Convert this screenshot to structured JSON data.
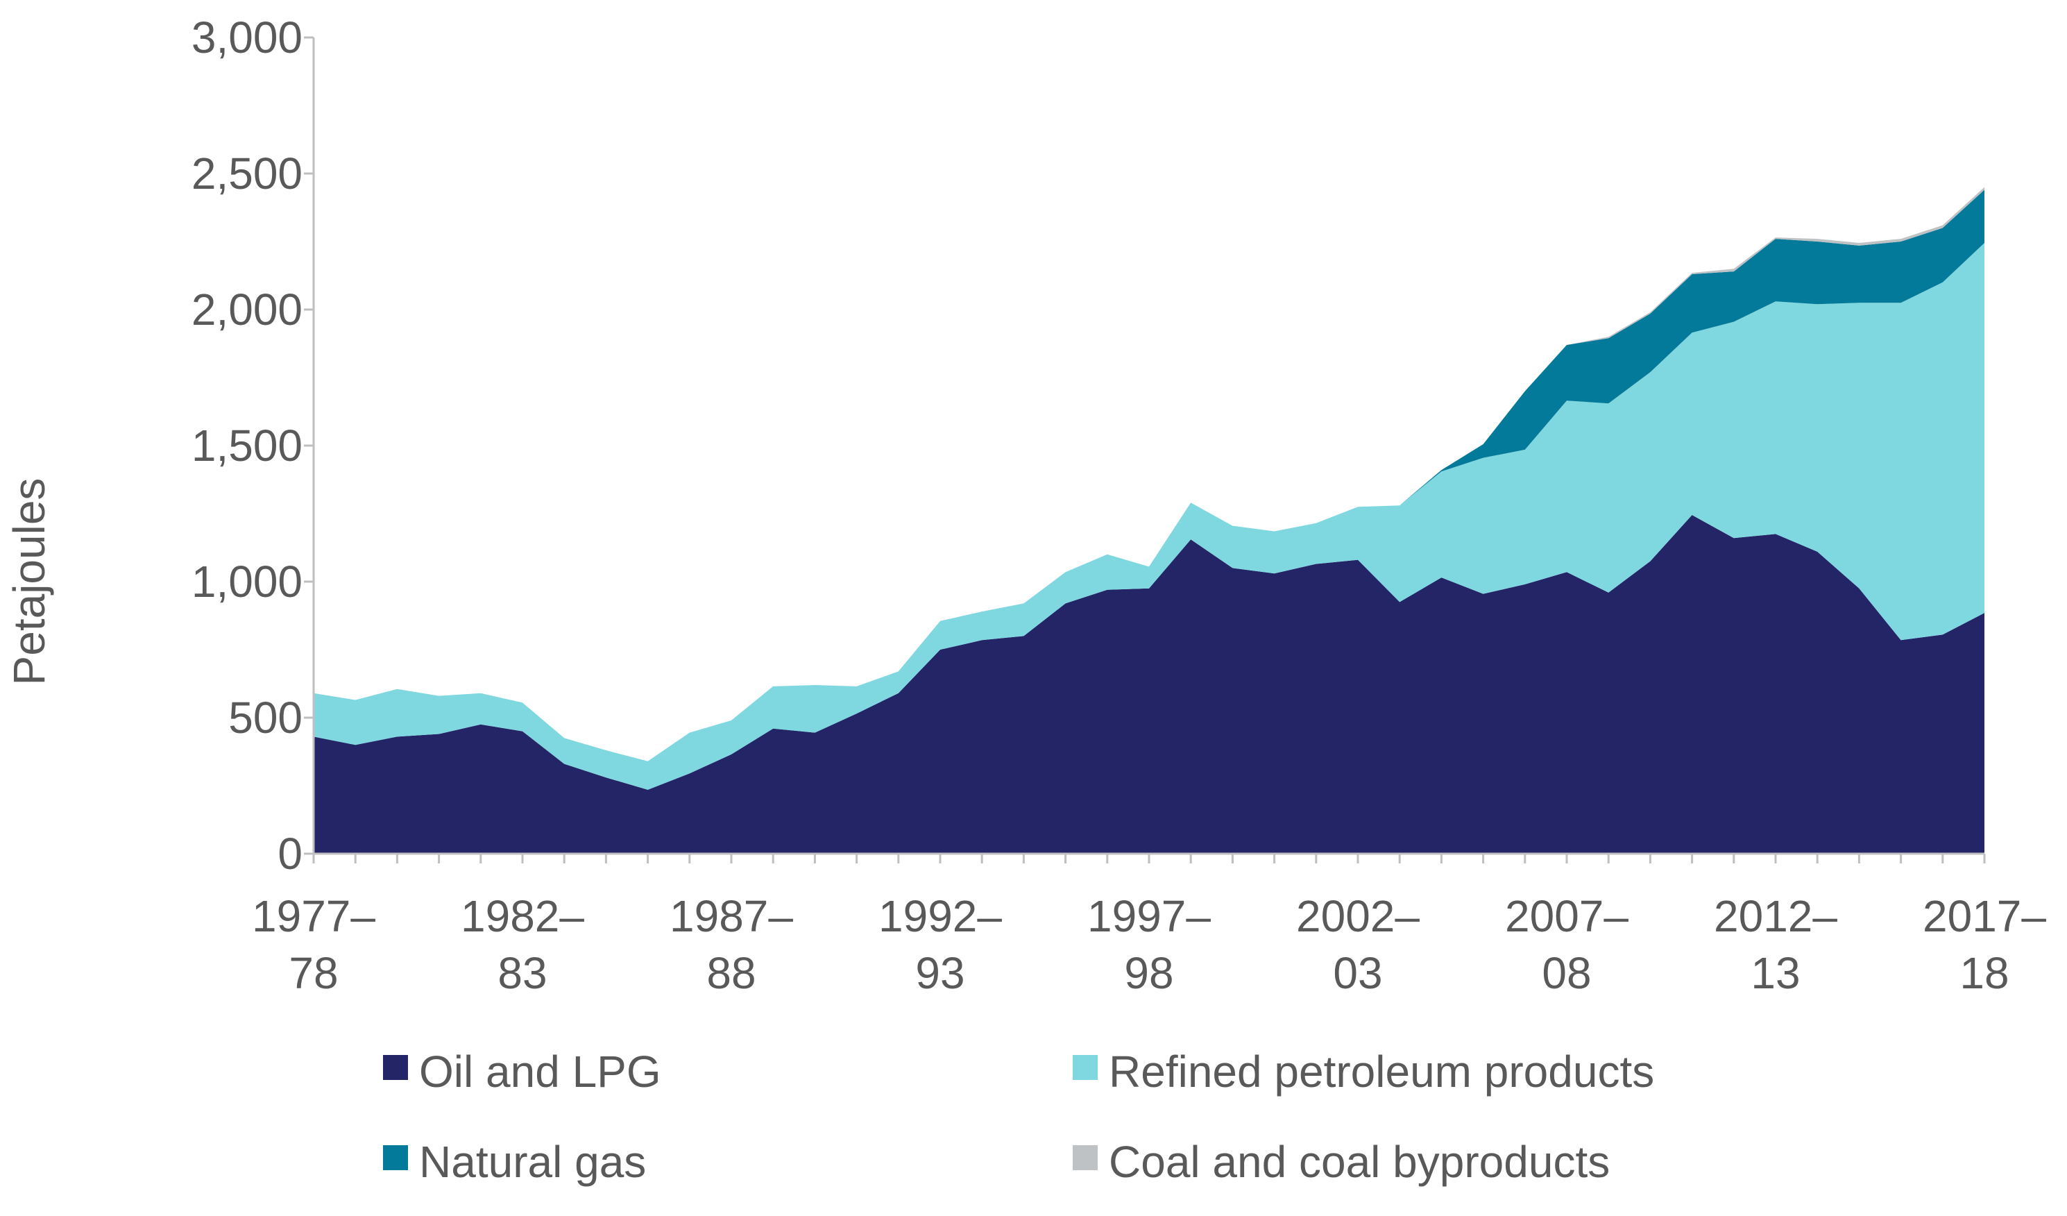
{
  "chart_data": {
    "type": "area",
    "stacked": true,
    "ylabel": "Petajoules",
    "xlabel": "",
    "ylim": [
      0,
      3000
    ],
    "y_ticks": [
      0,
      500,
      1000,
      1500,
      2000,
      2500,
      3000
    ],
    "y_tick_labels": [
      "0",
      "500",
      "1,000",
      "1,500",
      "2,000",
      "2,500",
      "3,000"
    ],
    "x_tick_labels": [
      {
        "index": 0,
        "line1": "1977–",
        "line2": "78"
      },
      {
        "index": 5,
        "line1": "1982–",
        "line2": "83"
      },
      {
        "index": 10,
        "line1": "1987–",
        "line2": "88"
      },
      {
        "index": 15,
        "line1": "1992–",
        "line2": "93"
      },
      {
        "index": 20,
        "line1": "1997–",
        "line2": "98"
      },
      {
        "index": 25,
        "line1": "2002–",
        "line2": "03"
      },
      {
        "index": 30,
        "line1": "2007–",
        "line2": "08"
      },
      {
        "index": 35,
        "line1": "2012–",
        "line2": "13"
      },
      {
        "index": 40,
        "line1": "2017–",
        "line2": "18"
      }
    ],
    "categories": [
      "1977–78",
      "1978–79",
      "1979–80",
      "1980–81",
      "1981–82",
      "1982–83",
      "1983–84",
      "1984–85",
      "1985–86",
      "1986–87",
      "1987–88",
      "1988–89",
      "1989–90",
      "1990–91",
      "1991–92",
      "1992–93",
      "1993–94",
      "1994–95",
      "1995–96",
      "1996–97",
      "1997–98",
      "1998–99",
      "1999–00",
      "2000–01",
      "2001–02",
      "2002–03",
      "2003–04",
      "2004–05",
      "2005–06",
      "2006–07",
      "2007–08",
      "2008–09",
      "2009–10",
      "2010–11",
      "2011–12",
      "2012–13",
      "2013–14",
      "2014–15",
      "2015–16",
      "2016–17",
      "2017–18"
    ],
    "series": [
      {
        "name": "Oil and LPG",
        "color": "#232566",
        "values": [
          430,
          400,
          430,
          440,
          475,
          450,
          330,
          280,
          235,
          295,
          365,
          460,
          445,
          515,
          590,
          750,
          785,
          800,
          920,
          970,
          975,
          1155,
          1050,
          1030,
          1065,
          1080,
          925,
          1015,
          955,
          990,
          1035,
          960,
          1075,
          1245,
          1160,
          1175,
          1110,
          975,
          785,
          805,
          885
        ]
      },
      {
        "name": "Refined petroleum products",
        "color": "#7FD8E0",
        "values": [
          160,
          165,
          175,
          140,
          115,
          105,
          95,
          100,
          105,
          150,
          125,
          155,
          175,
          100,
          80,
          105,
          105,
          120,
          115,
          130,
          80,
          135,
          155,
          155,
          150,
          195,
          355,
          390,
          500,
          495,
          630,
          695,
          695,
          670,
          795,
          855,
          910,
          1050,
          1240,
          1295,
          1360
        ]
      },
      {
        "name": "Natural gas",
        "color": "#037A99",
        "values": [
          0,
          0,
          0,
          0,
          0,
          0,
          0,
          0,
          0,
          0,
          0,
          0,
          0,
          0,
          0,
          0,
          0,
          0,
          0,
          0,
          0,
          0,
          0,
          0,
          0,
          0,
          0,
          5,
          50,
          215,
          205,
          240,
          215,
          215,
          185,
          230,
          230,
          210,
          225,
          200,
          195
        ]
      },
      {
        "name": "Coal and coal byproducts",
        "color": "#BFC2C5",
        "values": [
          0,
          0,
          0,
          0,
          0,
          0,
          0,
          0,
          0,
          0,
          0,
          0,
          0,
          0,
          0,
          0,
          0,
          0,
          0,
          0,
          0,
          0,
          0,
          0,
          0,
          0,
          0,
          0,
          0,
          0,
          0,
          5,
          5,
          5,
          10,
          5,
          10,
          10,
          10,
          10,
          10
        ]
      }
    ]
  },
  "legend": {
    "items": [
      {
        "label": "Oil and LPG",
        "color": "#232566"
      },
      {
        "label": "Refined petroleum products",
        "color": "#7FD8E0"
      },
      {
        "label": "Natural gas",
        "color": "#037A99"
      },
      {
        "label": "Coal and coal byproducts",
        "color": "#BFC2C5"
      }
    ]
  }
}
